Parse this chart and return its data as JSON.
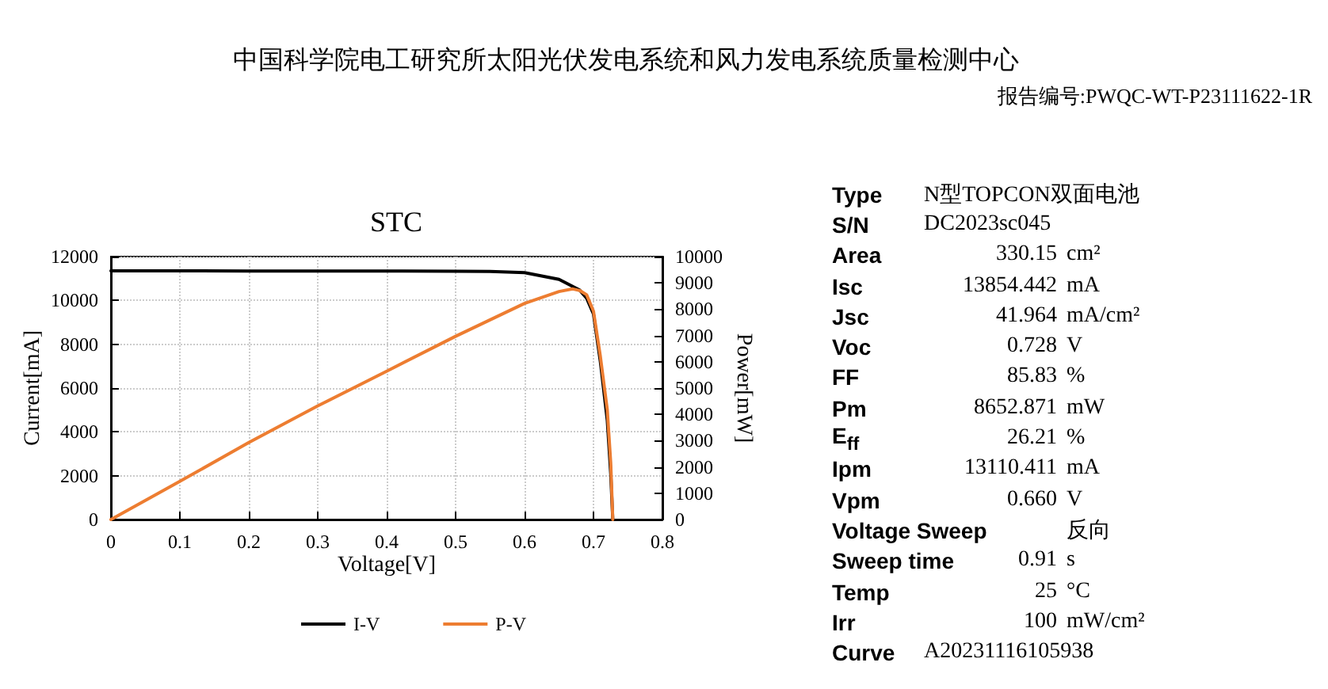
{
  "chart_data": [
    {
      "type": "line",
      "title": "STC",
      "xlabel": "Voltage[V]",
      "ylabel": "Current[mA]",
      "y2label": "Power[mW]",
      "annotations": [
        "中国科学院电工研究所太阳光伏发电系统和风力发电系统质量检测中心",
        "报告编号:PWQC-WT-P23111622-1R"
      ],
      "xlim": [
        0,
        0.8
      ],
      "xticks": [
        0,
        0.1,
        0.2,
        0.3,
        0.4,
        0.5,
        0.6,
        0.7,
        0.8
      ],
      "ylim": [
        0,
        12000
      ],
      "yticks": [
        0,
        2000,
        4000,
        6000,
        8000,
        10000,
        12000
      ],
      "y2lim": [
        0,
        10000
      ],
      "y2ticks": [
        0,
        1000,
        2000,
        3000,
        4000,
        5000,
        6000,
        7000,
        8000,
        9000,
        10000
      ],
      "grid": true,
      "legend": "bottom",
      "marker": "none",
      "line_style": "solid",
      "series": [
        {
          "name": "I-V",
          "color": "#000000",
          "x": [
            0,
            0.1,
            0.2,
            0.3,
            0.4,
            0.5,
            0.55,
            0.6,
            0.65,
            0.68,
            0.69,
            0.7,
            0.71,
            0.72,
            0.725,
            0.728
          ],
          "values": [
            11350,
            11350,
            11340,
            11340,
            11340,
            11330,
            11320,
            11270,
            10960,
            10470,
            10100,
            9380,
            7200,
            4530,
            2100,
            0
          ]
        },
        {
          "name": "P-V",
          "color": "#ed7d31",
          "axis": "y2",
          "x": [
            0,
            0.1,
            0.2,
            0.3,
            0.4,
            0.5,
            0.6,
            0.65,
            0.67,
            0.68,
            0.69,
            0.7,
            0.71,
            0.72,
            0.725,
            0.728
          ],
          "values": [
            0,
            1450,
            2930,
            4320,
            5640,
            6970,
            8220,
            8670,
            8770,
            8710,
            8550,
            7920,
            6200,
            4180,
            2160,
            0
          ]
        }
      ]
    },
    {
      "type": "other",
      "annotations": [
        "Type\tN型TOPCON双面电池",
        "S/N\tDC2023sc045",
        "Area\t330.15\tcm²",
        "Isc\t13854.442\tmA",
        "Jsc\t41.964\tmA/cm²",
        "Voc\t0.728\tV",
        "FF\t85.83\t%",
        "Pm\t8652.871\tmW",
        "E$_{ff}$\t26.21\t%",
        "Ipm\t13110.411\tmA",
        "Vpm\t0.660\tV",
        "Voltage Sweep\t\t反向",
        "Sweep  time\t0.91\ts",
        "Temp\t25\t°C",
        "Irr\t100\tmW/cm²",
        "Curve\tA20231116105938"
      ]
    }
  ]
}
